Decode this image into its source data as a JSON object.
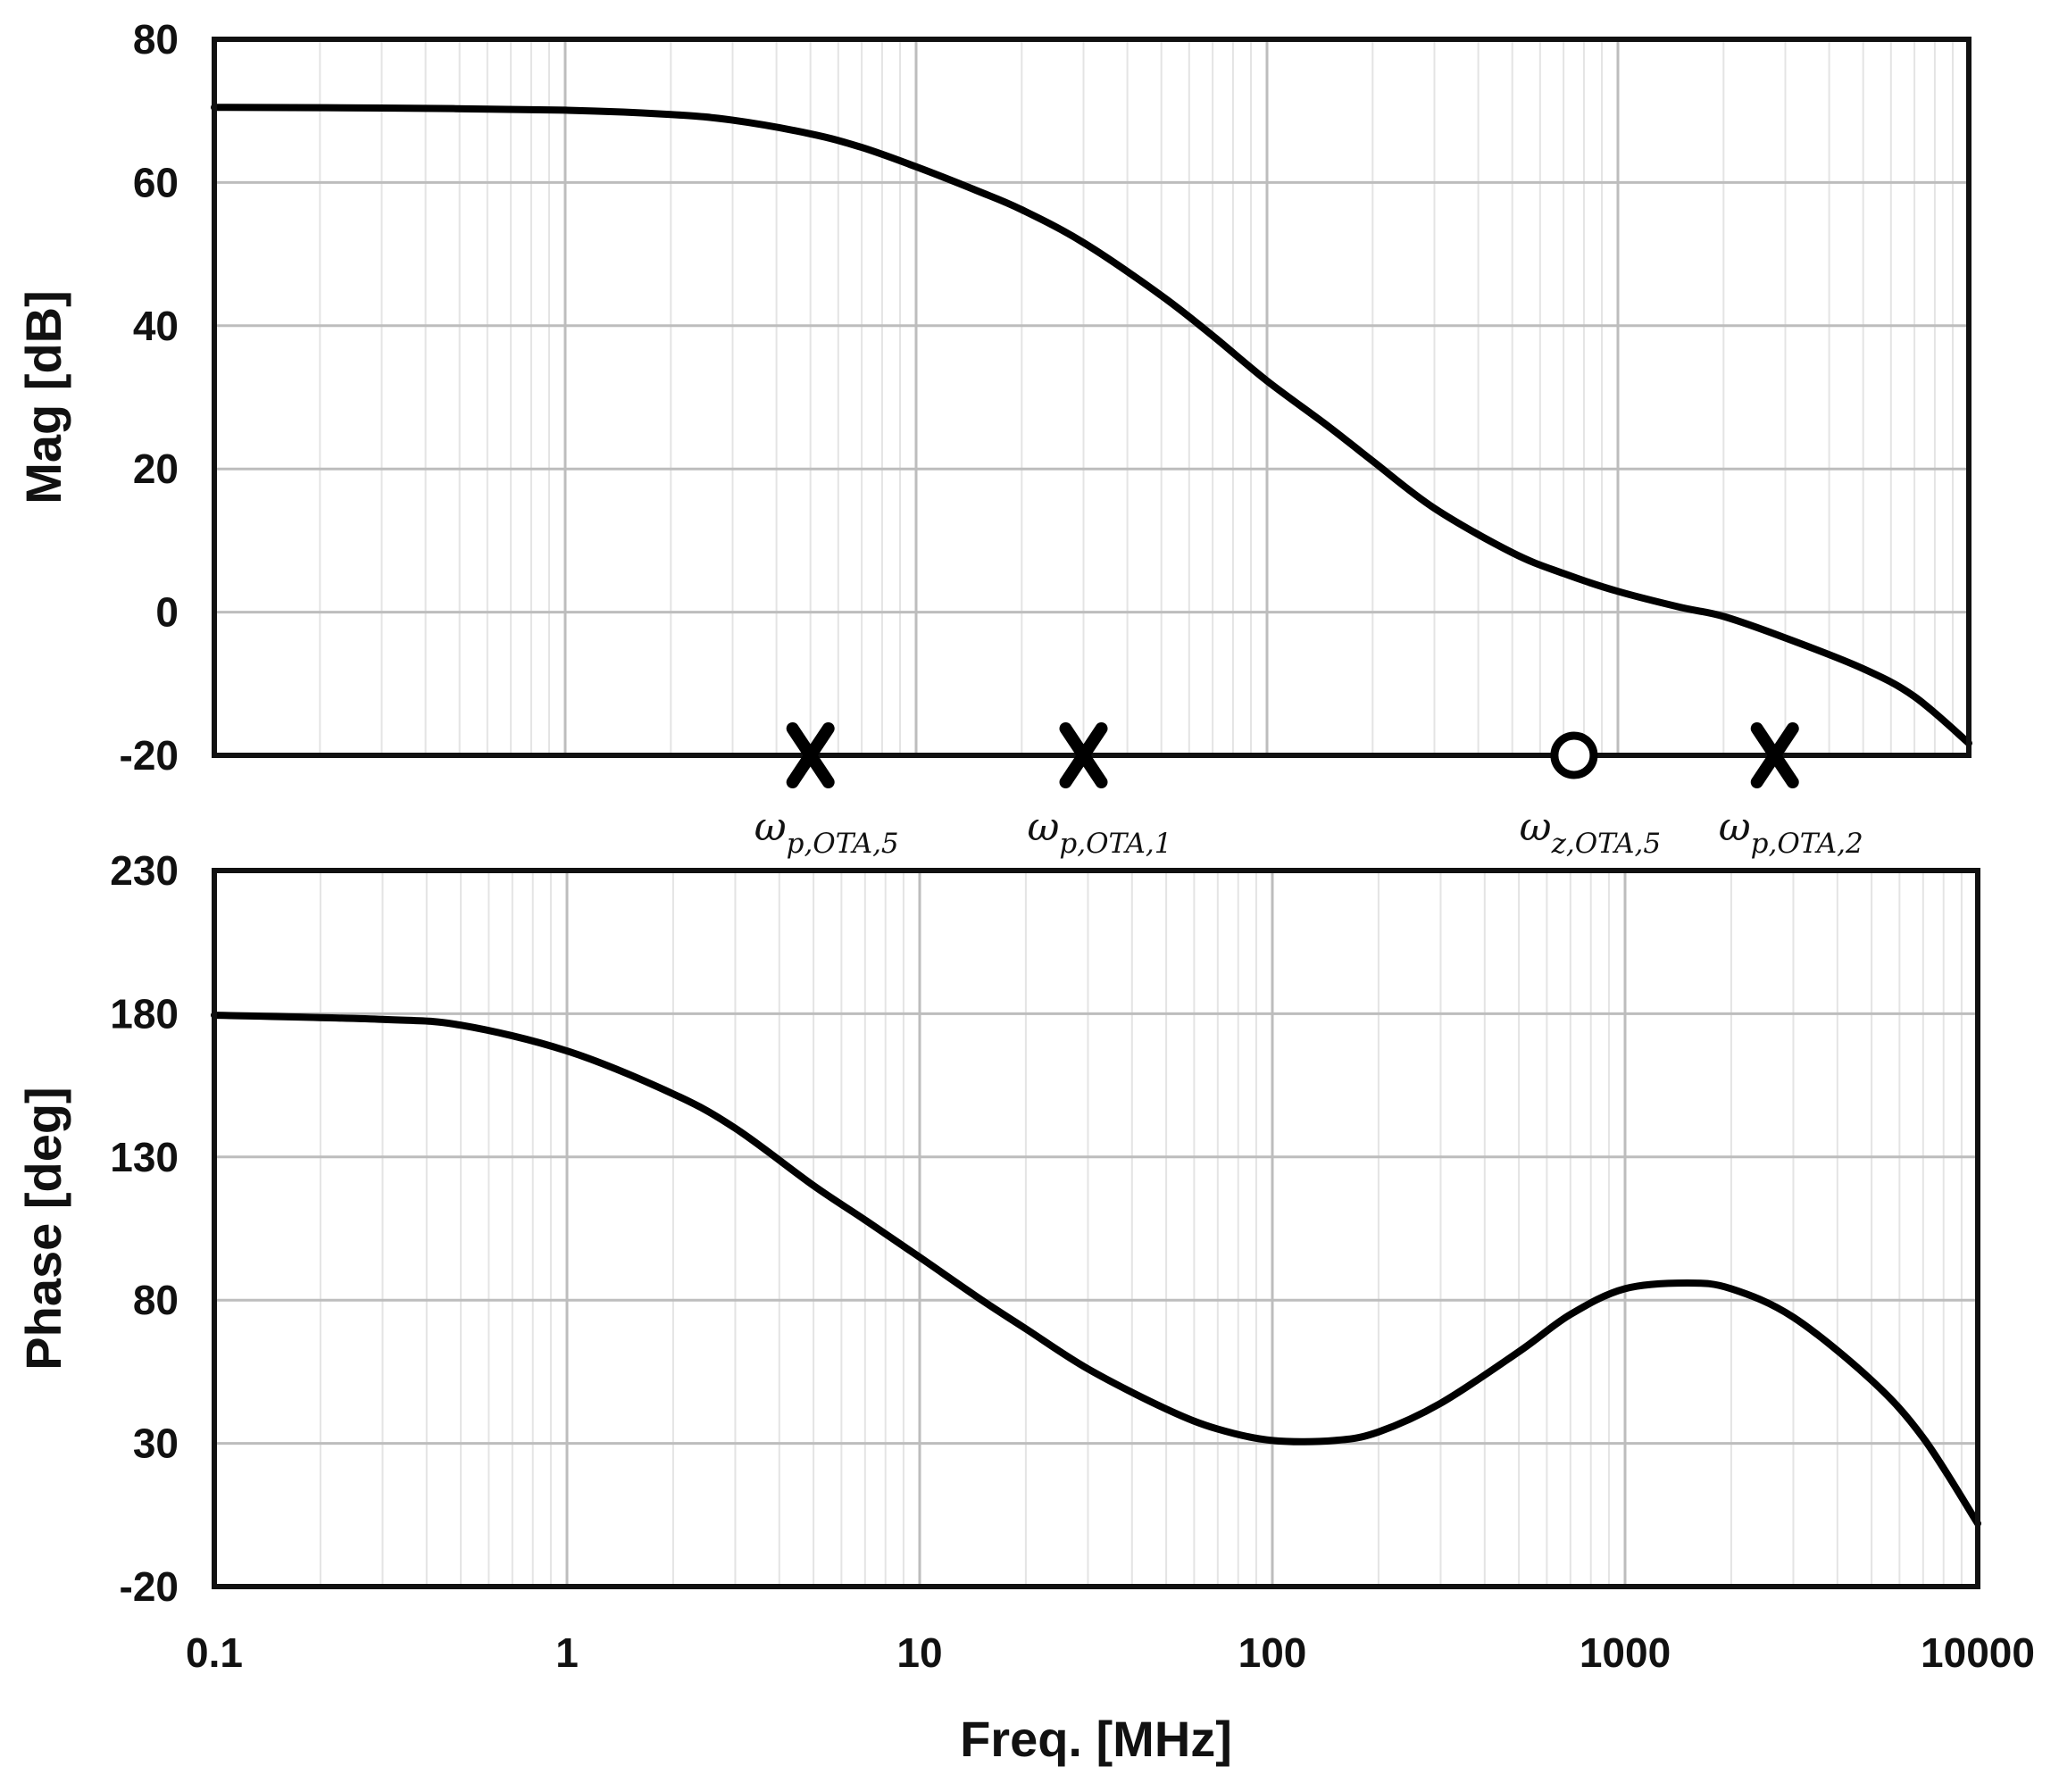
{
  "chart_data": [
    {
      "type": "line",
      "panel": "magnitude",
      "ylabel": "Mag [dB]",
      "xscale": "log",
      "xlim": [
        0.1,
        10000
      ],
      "ylim": [
        -20,
        80
      ],
      "yticks": [
        "80",
        "60",
        "40",
        "20",
        "0",
        "-20"
      ],
      "ytick_values": [
        80,
        60,
        40,
        20,
        0,
        -20
      ],
      "series": [
        {
          "name": "Magnitude",
          "x": [
            0.1,
            0.3,
            1,
            2,
            3,
            5,
            7,
            10,
            15,
            20,
            30,
            50,
            70,
            100,
            150,
            200,
            300,
            500,
            700,
            1000,
            1500,
            2000,
            3000,
            5000,
            7000,
            10000
          ],
          "values": [
            70.5,
            70.4,
            70.1,
            69.5,
            68.7,
            66.8,
            64.9,
            62.2,
            58.8,
            56.2,
            51.6,
            44.2,
            38.6,
            32.3,
            25.9,
            21.1,
            14.5,
            8.3,
            5.4,
            2.9,
            0.7,
            -0.6,
            -3.6,
            -7.9,
            -11.8,
            -18.3
          ]
        }
      ],
      "markers": [
        {
          "type": "pole",
          "x": 5,
          "label": "ω",
          "sub": "p,OTA,5"
        },
        {
          "type": "pole",
          "x": 30,
          "label": "ω",
          "sub": "p,OTA,1"
        },
        {
          "type": "zero",
          "x": 750,
          "label": "ω",
          "sub": "z,OTA,5"
        },
        {
          "type": "pole",
          "x": 2800,
          "label": "ω",
          "sub": "p,OTA,2"
        }
      ]
    },
    {
      "type": "line",
      "panel": "phase",
      "ylabel": "Phase [deg]",
      "xlabel": "Freq. [MHz]",
      "xscale": "log",
      "xlim": [
        0.1,
        10000
      ],
      "ylim": [
        -20,
        230
      ],
      "yticks": [
        "230",
        "180",
        "130",
        "80",
        "30",
        "-20"
      ],
      "ytick_values": [
        230,
        180,
        130,
        80,
        30,
        -20
      ],
      "xticks": [
        "0.1",
        "1",
        "10",
        "100",
        "1000",
        "10000"
      ],
      "xtick_values": [
        0.1,
        1,
        10,
        100,
        1000,
        10000
      ],
      "series": [
        {
          "name": "Phase",
          "x": [
            0.1,
            0.3,
            0.5,
            1,
            2,
            3,
            5,
            7,
            10,
            15,
            20,
            30,
            50,
            70,
            100,
            150,
            200,
            300,
            500,
            700,
            1000,
            1500,
            2000,
            3000,
            5000,
            7000,
            10000
          ],
          "values": [
            179.5,
            178,
            176,
            167,
            152,
            140,
            120,
            108,
            95,
            80,
            70,
            56,
            42,
            35,
            31,
            31,
            34,
            44,
            62,
            75,
            84,
            86,
            84,
            74,
            52,
            32,
            2
          ]
        }
      ]
    }
  ]
}
